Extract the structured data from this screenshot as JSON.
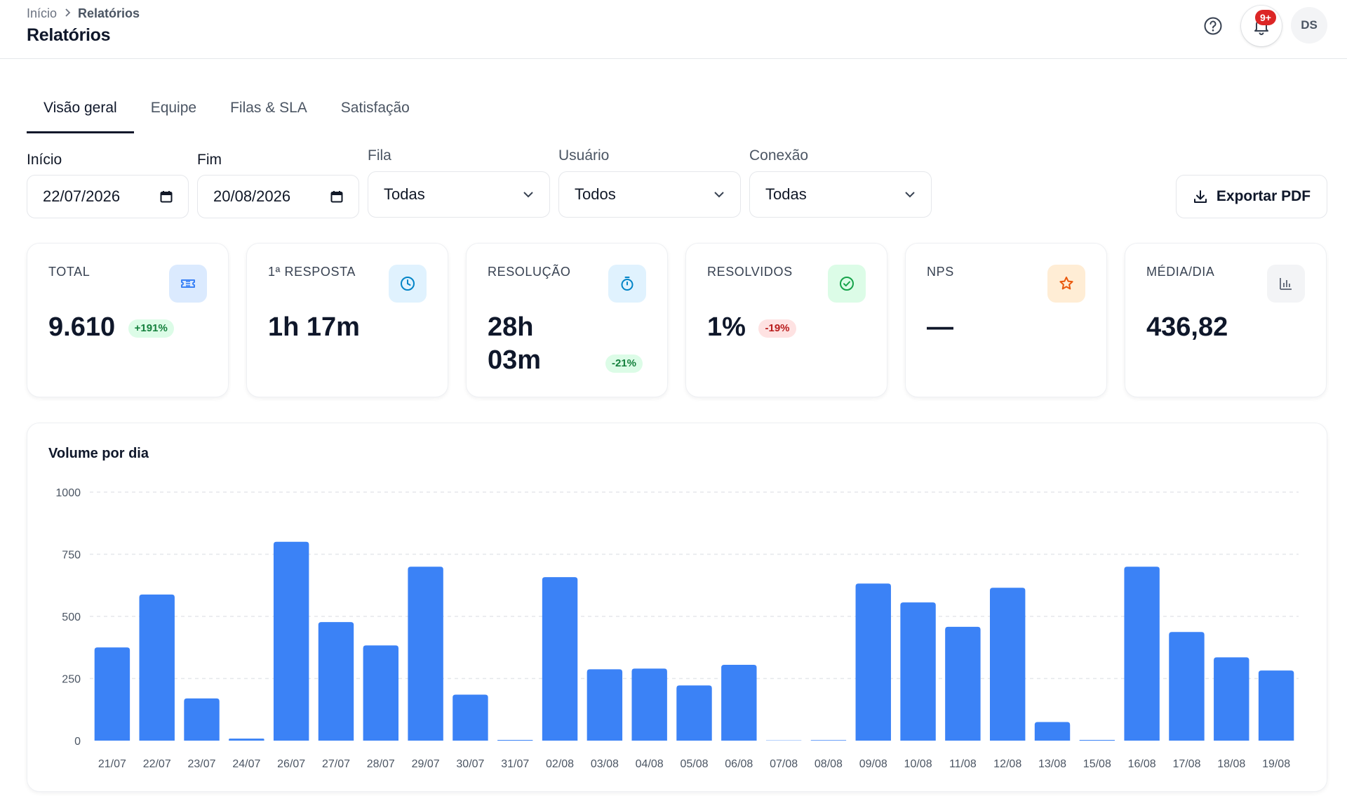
{
  "header": {
    "breadcrumb": [
      "Início",
      "Relatórios"
    ],
    "title": "Relatórios",
    "notifications_badge": "9+",
    "avatar_initials": "DS"
  },
  "tabs": [
    {
      "label": "Visão geral",
      "active": true
    },
    {
      "label": "Equipe",
      "active": false
    },
    {
      "label": "Filas & SLA",
      "active": false
    },
    {
      "label": "Satisfação",
      "active": false
    }
  ],
  "filters": {
    "start_label": "Início",
    "start_value": "22/07/2026",
    "end_label": "Fim",
    "end_value": "20/08/2026",
    "queue_label": "Fila",
    "queue_value": "Todas",
    "user_label": "Usuário",
    "user_value": "Todos",
    "connection_label": "Conexão",
    "connection_value": "Todas",
    "export_label": "Exportar PDF"
  },
  "kpis": [
    {
      "label": "TOTAL",
      "value": "9.610",
      "delta": "+191%",
      "delta_type": "positive",
      "icon": "ticket-icon",
      "icon_bg": "#dbeafe",
      "icon_color": "#3b82f6"
    },
    {
      "label": "1ª RESPOSTA",
      "value": "1h 17m",
      "delta": "",
      "icon": "clock-icon",
      "icon_bg": "#e0f2fe",
      "icon_color": "#0284c7"
    },
    {
      "label": "RESOLUÇÃO",
      "value_line1": "28h",
      "value_line2": "03m",
      "delta": "-21%",
      "delta_type": "positive",
      "icon": "stopwatch-icon",
      "icon_bg": "#e0f2fe",
      "icon_color": "#0284c7"
    },
    {
      "label": "RESOLVIDOS",
      "value": "1%",
      "delta": "-19%",
      "delta_type": "negative",
      "icon": "check-circle-icon",
      "icon_bg": "#dcfce7",
      "icon_color": "#16a34a"
    },
    {
      "label": "NPS",
      "value": "—",
      "delta": "",
      "icon": "star-icon",
      "icon_bg": "#ffedd5",
      "icon_color": "#ea580c"
    },
    {
      "label": "MÉDIA/DIA",
      "value": "436,82",
      "delta": "",
      "icon": "bar-chart-icon",
      "icon_bg": "#f3f4f6",
      "icon_color": "#6b7280"
    }
  ],
  "chart_data": {
    "type": "bar",
    "title": "Volume por dia",
    "categories": [
      "21/07",
      "22/07",
      "23/07",
      "24/07",
      "26/07",
      "27/07",
      "28/07",
      "29/07",
      "30/07",
      "31/07",
      "02/08",
      "03/08",
      "04/08",
      "05/08",
      "06/08",
      "07/08",
      "08/08",
      "09/08",
      "10/08",
      "11/08",
      "12/08",
      "13/08",
      "15/08",
      "16/08",
      "17/08",
      "18/08",
      "19/08"
    ],
    "values": [
      375,
      588,
      170,
      8,
      800,
      477,
      383,
      700,
      185,
      3,
      658,
      287,
      290,
      222,
      305,
      1,
      2,
      632,
      556,
      458,
      615,
      75,
      3,
      700,
      437,
      335,
      282
    ],
    "yticks": [
      "0",
      "250",
      "500",
      "750",
      "1000"
    ],
    "ylim": [
      0,
      1000
    ],
    "grid": true,
    "color": "#3b82f6"
  }
}
